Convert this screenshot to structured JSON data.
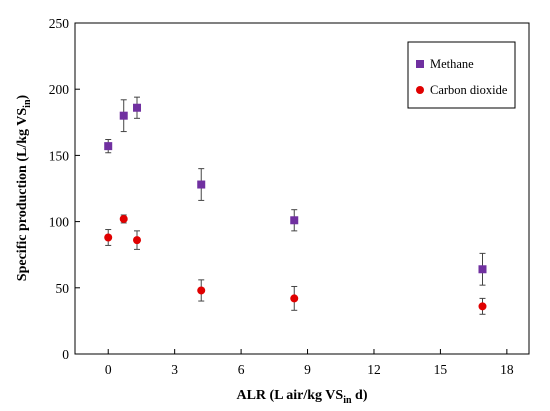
{
  "chart_data": {
    "type": "scatter",
    "xlabel": {
      "main": "ALR (L air/kg VS",
      "sub": "in",
      "tail": " d)"
    },
    "ylabel": {
      "main": "Specific production (L/kg VS",
      "sub": "in",
      "tail": ")"
    },
    "xlim": [
      -1.5,
      19
    ],
    "ylim": [
      0,
      250
    ],
    "xticks": [
      0,
      3,
      6,
      9,
      12,
      15,
      18
    ],
    "yticks": [
      0,
      50,
      100,
      150,
      200,
      250
    ],
    "grid": false,
    "legend_position": "top-right",
    "series": [
      {
        "name": "Methane",
        "marker": "square",
        "color": "#7030a0",
        "points": [
          {
            "x": 0,
            "y": 157,
            "err": 5
          },
          {
            "x": 0.7,
            "y": 180,
            "err": 12
          },
          {
            "x": 1.3,
            "y": 186,
            "err": 8
          },
          {
            "x": 4.2,
            "y": 128,
            "err": 12
          },
          {
            "x": 8.4,
            "y": 101,
            "err": 8
          },
          {
            "x": 16.9,
            "y": 64,
            "err": 12
          }
        ]
      },
      {
        "name": "Carbon dioxide",
        "marker": "circle",
        "color": "#e00000",
        "points": [
          {
            "x": 0,
            "y": 88,
            "err": 6
          },
          {
            "x": 0.7,
            "y": 102,
            "err": 3
          },
          {
            "x": 1.3,
            "y": 86,
            "err": 7
          },
          {
            "x": 4.2,
            "y": 48,
            "err": 8
          },
          {
            "x": 8.4,
            "y": 42,
            "err": 9
          },
          {
            "x": 16.9,
            "y": 36,
            "err": 6
          }
        ]
      }
    ]
  }
}
